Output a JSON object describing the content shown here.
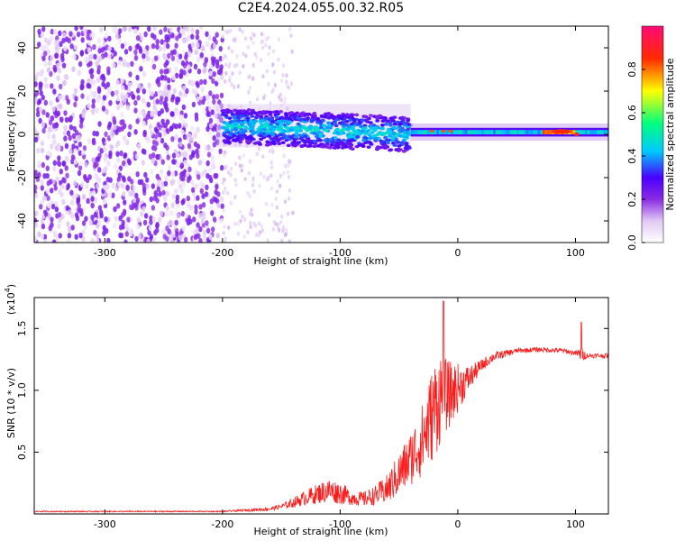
{
  "title": "C2E4.2024.055.00.32.R05",
  "chart_data": [
    {
      "type": "heatmap",
      "xlabel": "Height of straight line (km)",
      "ylabel": "Frequency (Hz)",
      "xlim": [
        -360,
        128
      ],
      "ylim": [
        -50,
        50
      ],
      "xticks": [
        -300,
        -200,
        -100,
        0,
        100
      ],
      "yticks": [
        -40,
        -20,
        0,
        20,
        40
      ],
      "colorbar": {
        "label": "Normalized spectral amplitude",
        "range": [
          0.0,
          1.0
        ],
        "ticks": [
          "0.0",
          "0.2",
          "0.4",
          "0.6",
          "0.8"
        ],
        "tick_values": [
          0.0,
          0.2,
          0.4,
          0.6,
          0.8
        ],
        "colors": [
          "#ffffff",
          "#e0c8f4",
          "#8a2be2",
          "#4a00ff",
          "#00c8ff",
          "#00ff7f",
          "#ffff00",
          "#ff2a00",
          "#ff0a78"
        ]
      },
      "features": [
        {
          "region": "noise",
          "x_range": [
            -360,
            -200
          ],
          "f_range": [
            -50,
            50
          ],
          "amplitude": 0.15
        },
        {
          "region": "broadband",
          "x_range": [
            -200,
            -40
          ],
          "f_center": 4,
          "f_spread": 8,
          "amplitude": 0.35
        },
        {
          "region": "carrier",
          "x_range": [
            -40,
            128
          ],
          "f_center": 1,
          "f_spread": 2,
          "amplitude": 0.5
        }
      ]
    },
    {
      "type": "line",
      "xlabel": "Height of straight line (km)",
      "ylabel": "SNR (10 * v/v)",
      "y_exponent_label": "(x10",
      "y_exponent_sup": "4",
      "xlim": [
        -360,
        128
      ],
      "ylim": [
        0,
        1.75
      ],
      "xticks": [
        -300,
        -200,
        -100,
        0,
        100
      ],
      "yticks": [
        0.5,
        1.0,
        1.5
      ],
      "ytick_labels": [
        "0.5",
        "1.0",
        "1.5"
      ],
      "series": [
        {
          "color": "#ff1a1a",
          "x": [
            -360,
            -300,
            -250,
            -200,
            -180,
            -160,
            -150,
            -140,
            -130,
            -120,
            -110,
            -100,
            -90,
            -80,
            -70,
            -60,
            -50,
            -40,
            -30,
            -20,
            -15,
            -10,
            -5,
            0,
            10,
            20,
            30,
            50,
            70,
            90,
            100,
            105,
            110,
            128
          ],
          "y": [
            0.02,
            0.02,
            0.02,
            0.02,
            0.03,
            0.04,
            0.06,
            0.09,
            0.13,
            0.16,
            0.19,
            0.17,
            0.13,
            0.12,
            0.15,
            0.2,
            0.32,
            0.45,
            0.6,
            0.85,
            0.95,
            0.95,
            0.98,
            1.02,
            1.1,
            1.2,
            1.27,
            1.32,
            1.33,
            1.32,
            1.3,
            1.29,
            1.28,
            1.28
          ],
          "noise": [
            0.005,
            0.005,
            0.005,
            0.005,
            0.01,
            0.015,
            0.02,
            0.04,
            0.06,
            0.08,
            0.1,
            0.09,
            0.06,
            0.06,
            0.08,
            0.12,
            0.18,
            0.22,
            0.3,
            0.4,
            0.4,
            0.3,
            0.25,
            0.2,
            0.1,
            0.05,
            0.04,
            0.02,
            0.02,
            0.02,
            0.02,
            0.06,
            0.02,
            0.02
          ]
        }
      ]
    }
  ]
}
